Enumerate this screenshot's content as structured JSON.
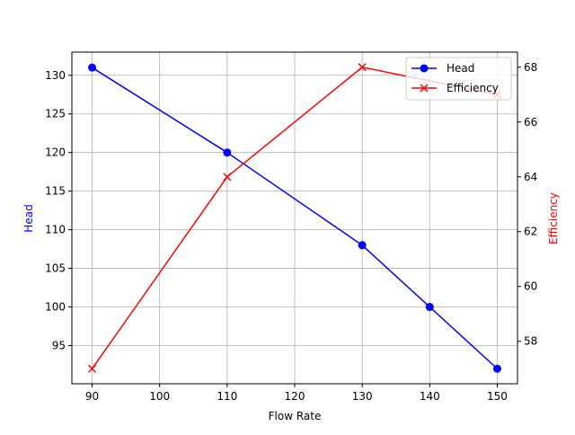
{
  "chart_data": {
    "type": "line",
    "title": "",
    "xlabel": "Flow Rate",
    "ylabel": "Head",
    "y2label": "Efficiency",
    "x": [
      90,
      110,
      130,
      140,
      150
    ],
    "xlim": [
      87,
      153
    ],
    "ylim": [
      90.05,
      133.0
    ],
    "y2lim": [
      56.45,
      68.55
    ],
    "xticks": [
      90,
      100,
      110,
      120,
      130,
      140,
      150
    ],
    "yticks": [
      95,
      100,
      105,
      110,
      115,
      120,
      125,
      130
    ],
    "y2ticks": [
      58,
      60,
      62,
      64,
      66,
      68
    ],
    "grid": true,
    "legend_position": "upper right",
    "series": [
      {
        "name": "Head",
        "axis": "left",
        "color": "#0000ff",
        "marker": "circle",
        "x": [
          90,
          110,
          130,
          140,
          150
        ],
        "values": [
          131,
          120,
          108,
          100,
          92
        ]
      },
      {
        "name": "Efficiency",
        "axis": "right",
        "color": "#ff0000",
        "marker": "x",
        "x": [
          90,
          110,
          130,
          150
        ],
        "values": [
          57,
          64,
          68,
          67
        ]
      }
    ]
  },
  "colors": {
    "head": "#0000ff",
    "efficiency": "#ff0000",
    "grid": "#b0b0b0",
    "axis": "#000000"
  }
}
